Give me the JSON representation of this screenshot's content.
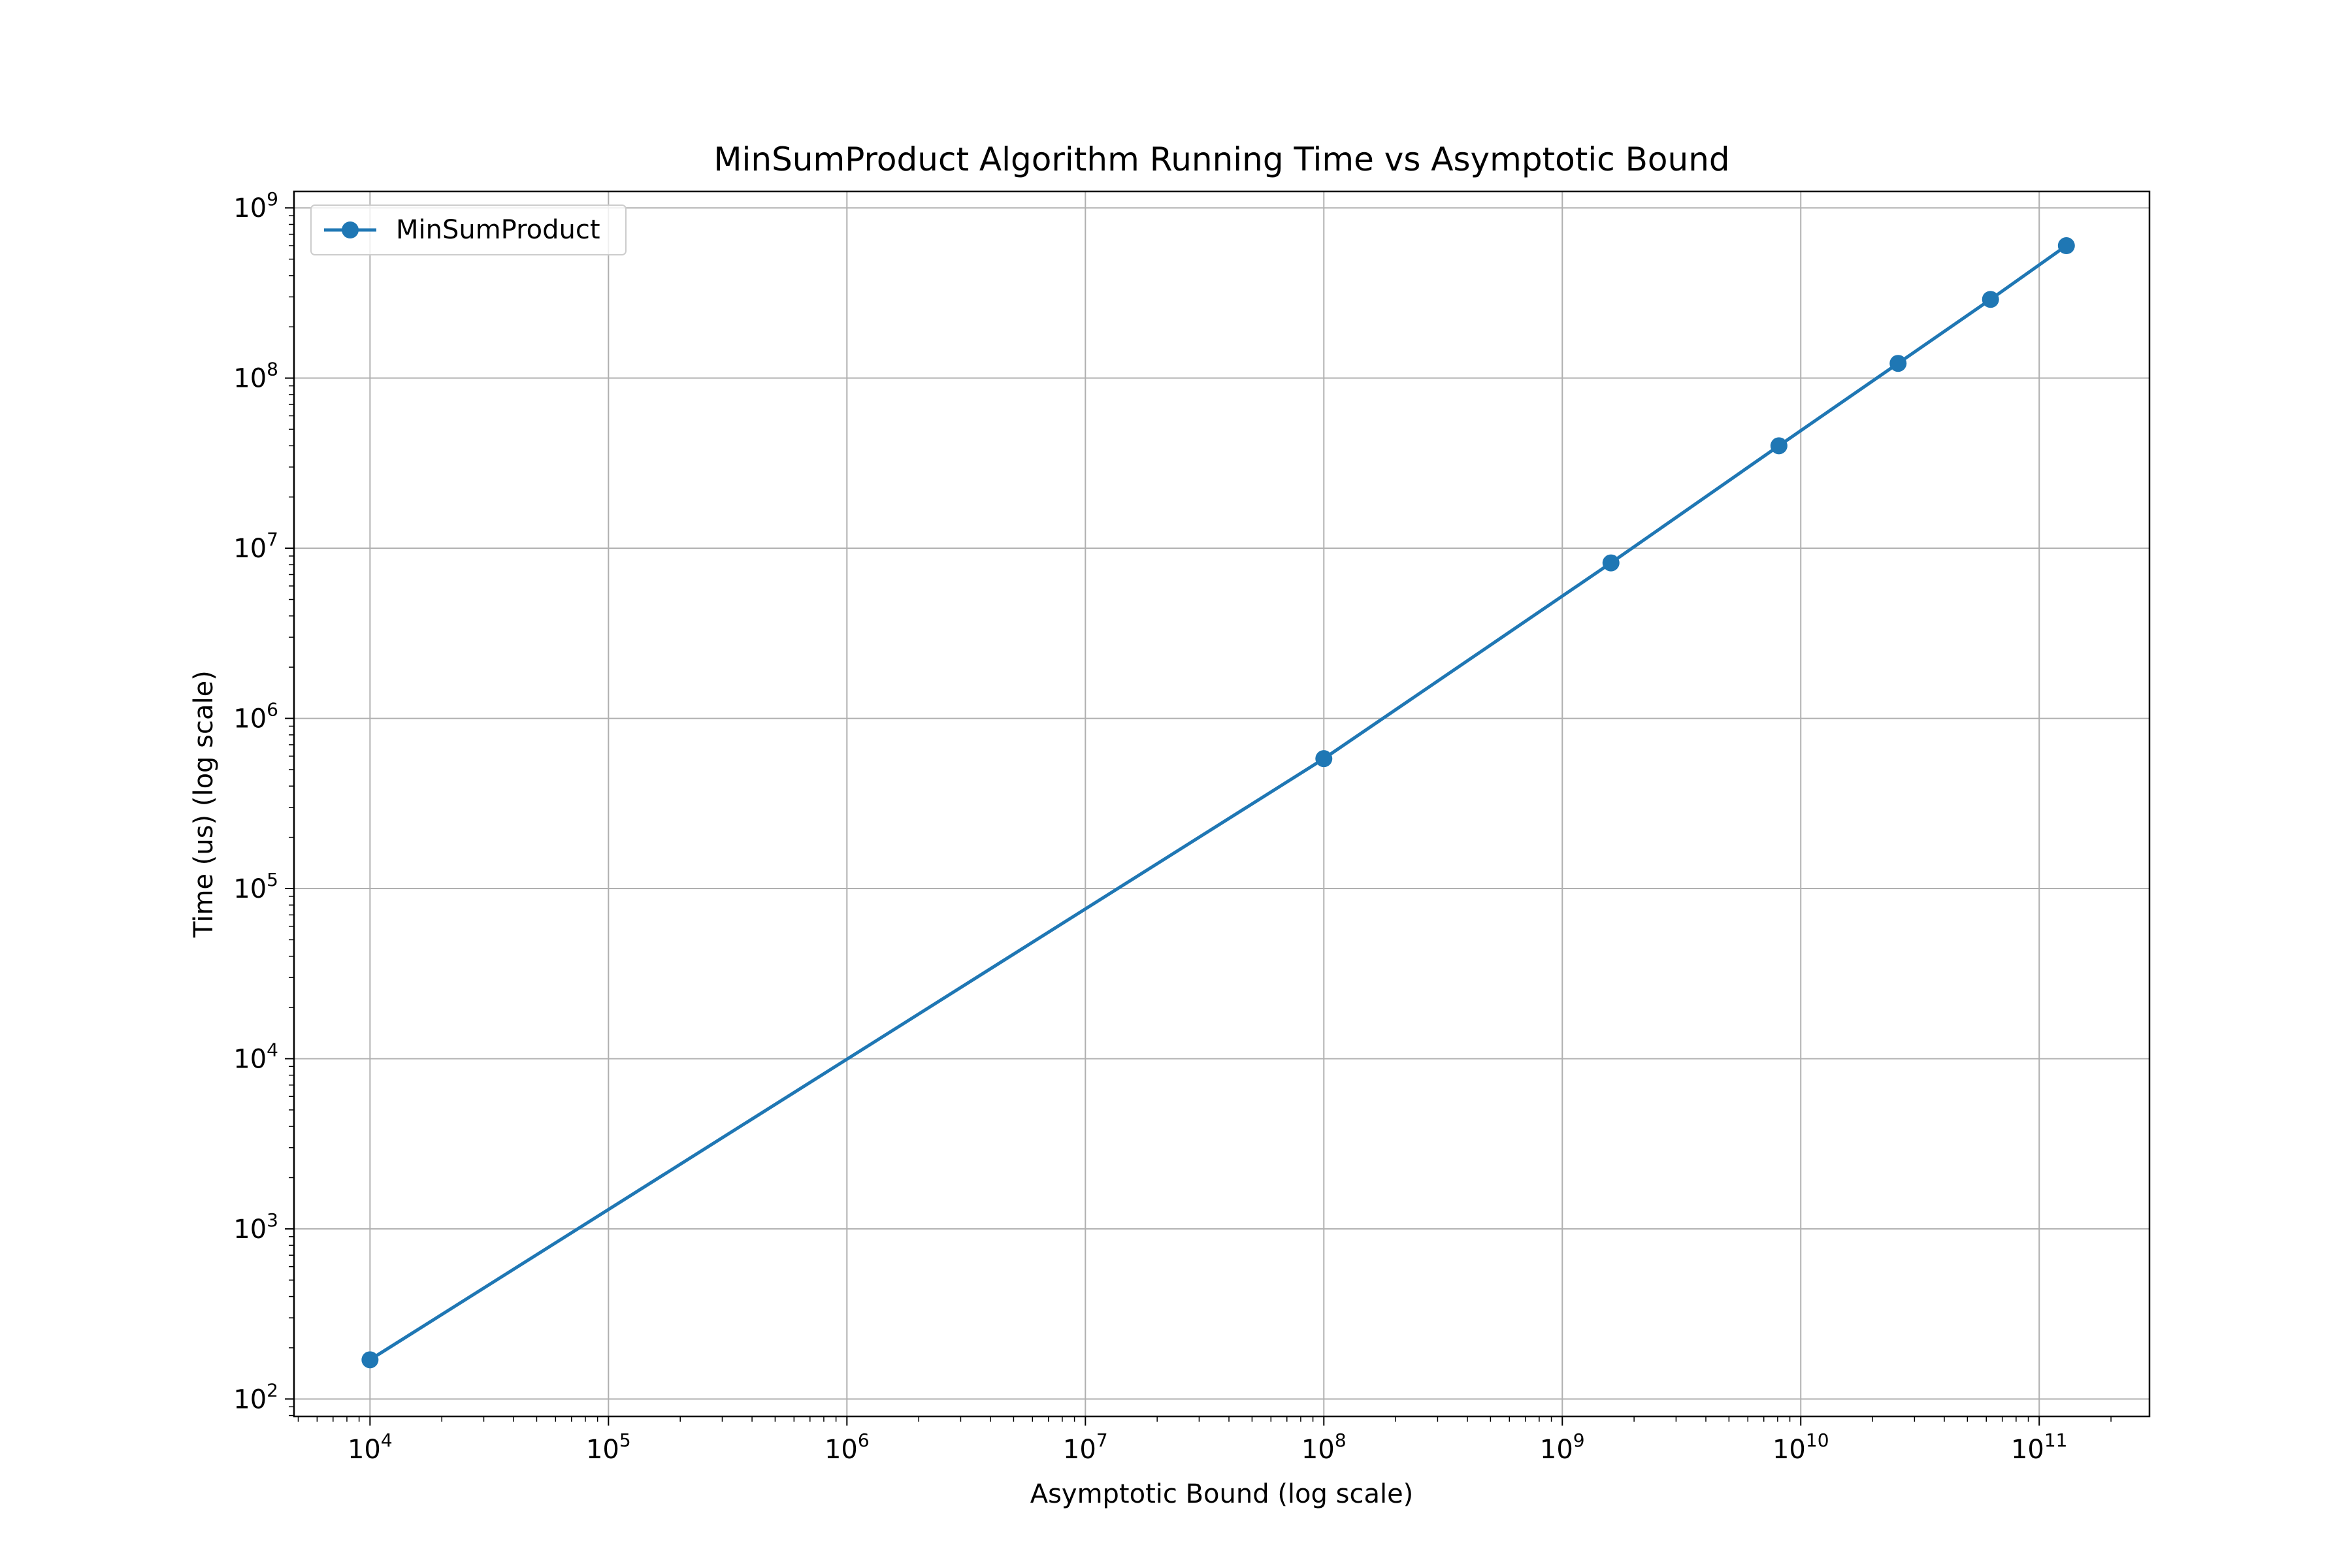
{
  "chart_data": {
    "type": "line",
    "title": "MinSumProduct Algorithm Running Time vs Asymptotic Bound",
    "xlabel": "Asymptotic Bound (log scale)",
    "ylabel": "Time (us) (log scale)",
    "xscale": "log",
    "yscale": "log",
    "xlim": [
      4800.0,
      290000000000.0
    ],
    "ylim": [
      79.0,
      1250000000.0
    ],
    "x_ticks": [
      10000.0,
      100000.0,
      1000000.0,
      10000000.0,
      100000000.0,
      1000000000.0,
      10000000000.0,
      100000000000.0
    ],
    "x_tick_labels": [
      {
        "base": "10",
        "exp": "4"
      },
      {
        "base": "10",
        "exp": "5"
      },
      {
        "base": "10",
        "exp": "6"
      },
      {
        "base": "10",
        "exp": "7"
      },
      {
        "base": "10",
        "exp": "8"
      },
      {
        "base": "10",
        "exp": "9"
      },
      {
        "base": "10",
        "exp": "10"
      },
      {
        "base": "10",
        "exp": "11"
      }
    ],
    "y_ticks": [
      100.0,
      1000.0,
      10000.0,
      100000.0,
      1000000.0,
      10000000.0,
      100000000.0,
      1000000000.0
    ],
    "y_tick_labels": [
      {
        "base": "10",
        "exp": "2"
      },
      {
        "base": "10",
        "exp": "3"
      },
      {
        "base": "10",
        "exp": "4"
      },
      {
        "base": "10",
        "exp": "5"
      },
      {
        "base": "10",
        "exp": "6"
      },
      {
        "base": "10",
        "exp": "7"
      },
      {
        "base": "10",
        "exp": "8"
      },
      {
        "base": "10",
        "exp": "9"
      }
    ],
    "grid": true,
    "legend_position": "top-left",
    "series": [
      {
        "name": "MinSumProduct",
        "color": "#1f77b4",
        "marker": "circle",
        "x": [
          10000.0,
          100000000.0,
          1600000000.0,
          8100000000.0,
          25600000000.0,
          62500000000.0,
          130000000000.0
        ],
        "y": [
          170,
          580000.0,
          8200000.0,
          40000000.0,
          122000000.0,
          290000000.0,
          600000000.0
        ]
      }
    ]
  }
}
